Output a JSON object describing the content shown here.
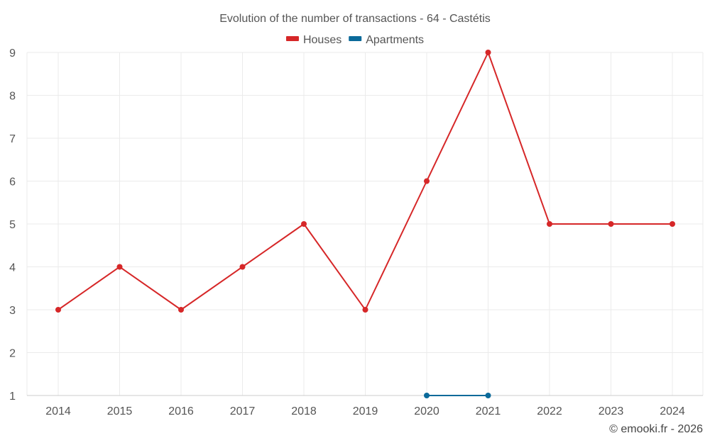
{
  "chart_data": {
    "type": "line",
    "title": "Evolution of the number of transactions - 64 - Castétis",
    "categories": [
      "2014",
      "2015",
      "2016",
      "2017",
      "2018",
      "2019",
      "2020",
      "2021",
      "2022",
      "2023",
      "2024"
    ],
    "series": [
      {
        "name": "Houses",
        "color": "#d62728",
        "values": [
          3,
          4,
          3,
          4,
          5,
          3,
          6,
          9,
          5,
          5,
          5
        ]
      },
      {
        "name": "Apartments",
        "color": "#0b6a9a",
        "values": [
          null,
          null,
          null,
          null,
          null,
          null,
          1,
          1,
          null,
          null,
          null
        ]
      }
    ],
    "ylim": [
      1,
      9
    ],
    "yticks": [
      1,
      2,
      3,
      4,
      5,
      6,
      7,
      8,
      9
    ],
    "xlabel": "",
    "ylabel": "",
    "grid": true,
    "legend_position": "top-center"
  },
  "credit": "© emooki.fr - 2026"
}
